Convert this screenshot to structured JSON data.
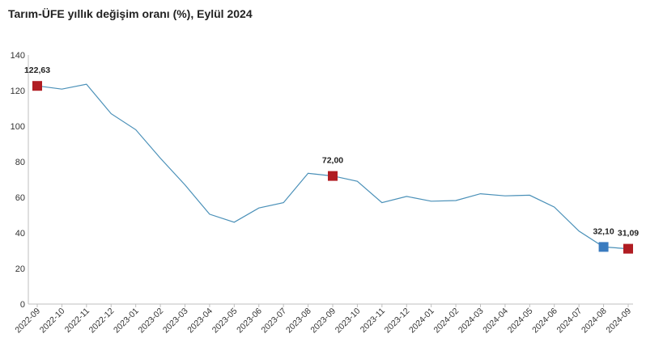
{
  "chart_data": {
    "type": "line",
    "title": "Tarım-ÜFE yıllık değişim oranı (%), Eylül 2024",
    "xlabel": "",
    "ylabel": "",
    "ylim": [
      0,
      140
    ],
    "yticks": [
      "0",
      "20",
      "40",
      "60",
      "80",
      "100",
      "120",
      "140"
    ],
    "grid": false,
    "legend": "none",
    "line_color": "#4a90b8",
    "categories": [
      "2022-09",
      "2022-10",
      "2022-11",
      "2022-12",
      "2023-01",
      "2023-02",
      "2023-03",
      "2023-04",
      "2023-05",
      "2023-06",
      "2023-07",
      "2023-08",
      "2023-09",
      "2023-10",
      "2023-11",
      "2023-12",
      "2024-01",
      "2024-02",
      "2024-03",
      "2024-04",
      "2024-05",
      "2024-06",
      "2024-07",
      "2024-08",
      "2024-09"
    ],
    "values": [
      122.63,
      120.8,
      123.6,
      107.0,
      98.0,
      82.0,
      67.0,
      50.5,
      46.0,
      54.0,
      57.0,
      73.5,
      72.0,
      69.0,
      57.0,
      60.5,
      57.8,
      58.2,
      62.0,
      60.8,
      61.2,
      54.5,
      41.0,
      32.1,
      31.09
    ],
    "markers": [
      {
        "index": 0,
        "label": "122,63",
        "color": "#b01c22"
      },
      {
        "index": 12,
        "label": "72,00",
        "color": "#b01c22"
      },
      {
        "index": 23,
        "label": "32,10",
        "color": "#3a7bbf"
      },
      {
        "index": 24,
        "label": "31,09",
        "color": "#b01c22"
      }
    ]
  }
}
